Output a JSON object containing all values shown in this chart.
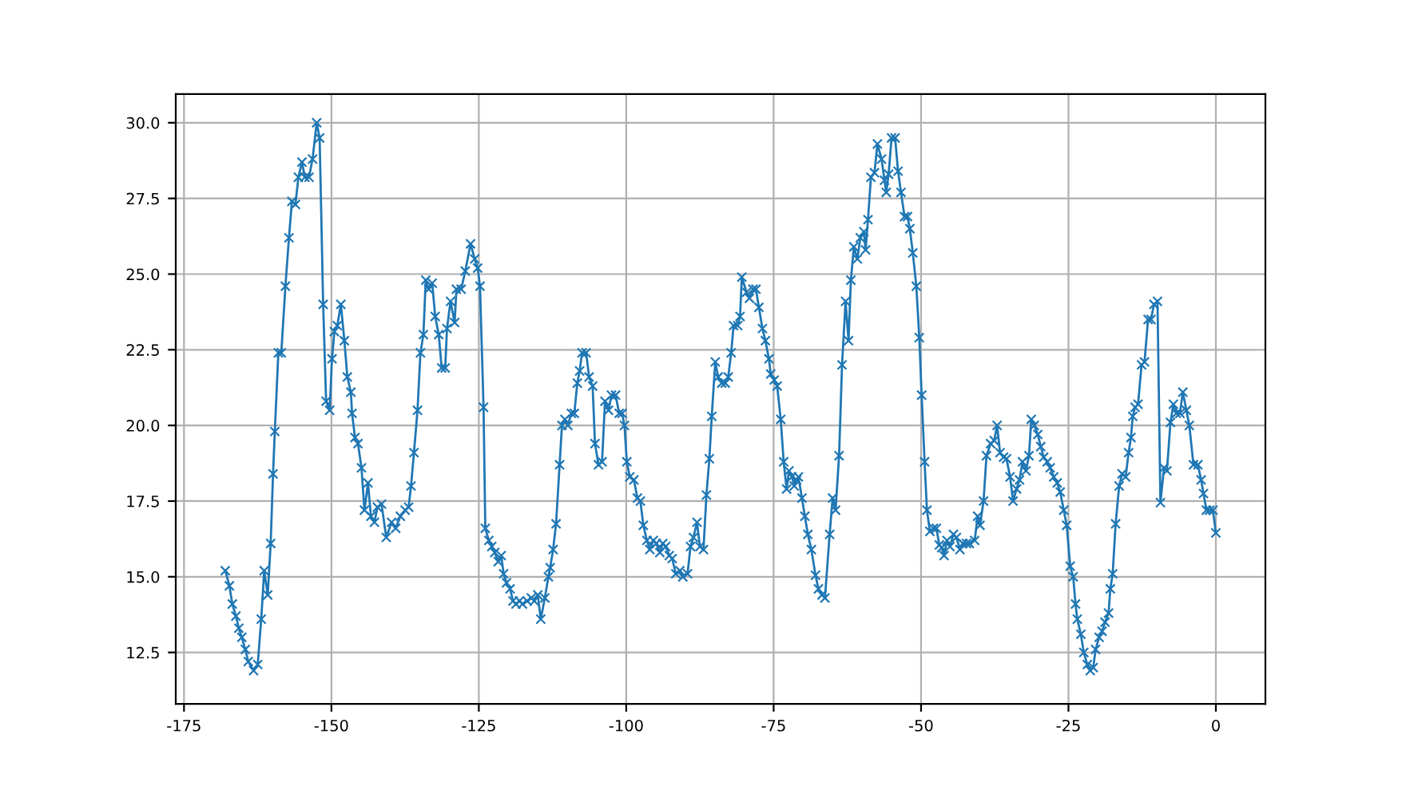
{
  "chart_data": {
    "type": "line",
    "marker": "cross",
    "line_style": "solid",
    "grid": true,
    "xlim": [
      -176.4,
      8.4
    ],
    "ylim": [
      10.8,
      30.95
    ],
    "xticks": [
      -175,
      -150,
      -125,
      -100,
      -75,
      -50,
      -25,
      0
    ],
    "yticks": [
      12.5,
      {
        "value": 15,
        "label": "15.0"
      },
      17.5,
      {
        "value": 20,
        "label": "20.0"
      },
      22.5,
      {
        "value": 25,
        "label": "25.0"
      },
      27.5,
      {
        "value": 30,
        "label": "30.0"
      }
    ],
    "series": [
      {
        "color": "#1f77b4",
        "x": [
          -168.0,
          -167.3,
          -166.8,
          -166.2,
          -165.7,
          -165.2,
          -164.6,
          -164.1,
          -163.2,
          -162.5,
          -161.9,
          -161.4,
          -160.8,
          -160.3,
          -159.9,
          -159.6,
          -159.0,
          -158.5,
          -157.8,
          -157.2,
          -156.7,
          -156.1,
          -155.6,
          -155.0,
          -154.5,
          -153.8,
          -153.2,
          -152.5,
          -152.0,
          -151.4,
          -150.9,
          -150.3,
          -149.9,
          -149.5,
          -149.0,
          -148.4,
          -147.8,
          -147.3,
          -146.7,
          -146.5,
          -146.0,
          -145.5,
          -144.9,
          -144.4,
          -143.8,
          -143.3,
          -142.7,
          -142.2,
          -141.5,
          -140.7,
          -139.8,
          -139.1,
          -138.3,
          -137.5,
          -136.9,
          -136.5,
          -136.0,
          -135.4,
          -134.9,
          -134.4,
          -134.0,
          -133.5,
          -132.9,
          -132.4,
          -131.8,
          -131.3,
          -130.7,
          -130.4,
          -129.8,
          -129.1,
          -128.8,
          -128.0,
          -127.3,
          -126.4,
          -125.7,
          -125.2,
          -124.8,
          -124.2,
          -123.9,
          -123.3,
          -122.8,
          -122.3,
          -121.7,
          -121.2,
          -120.8,
          -120.3,
          -119.7,
          -119.2,
          -118.7,
          -118.1,
          -117.6,
          -116.8,
          -116.1,
          -115.6,
          -115.0,
          -114.5,
          -113.8,
          -113.2,
          -112.9,
          -112.4,
          -111.9,
          -111.3,
          -110.9,
          -110.4,
          -109.9,
          -109.3,
          -108.8,
          -108.3,
          -107.9,
          -107.5,
          -106.8,
          -106.3,
          -105.7,
          -105.3,
          -104.7,
          -104.1,
          -103.6,
          -103.0,
          -102.5,
          -101.8,
          -101.2,
          -100.7,
          -100.3,
          -99.9,
          -99.4,
          -98.7,
          -98.1,
          -97.6,
          -97.1,
          -96.5,
          -96.0,
          -95.4,
          -94.9,
          -94.3,
          -93.8,
          -93.3,
          -92.7,
          -92.2,
          -91.6,
          -90.9,
          -90.4,
          -89.6,
          -89.1,
          -88.6,
          -88.0,
          -87.5,
          -86.9,
          -86.4,
          -85.9,
          -85.5,
          -84.9,
          -84.4,
          -83.8,
          -83.2,
          -82.7,
          -82.2,
          -81.8,
          -81.1,
          -80.7,
          -80.4,
          -79.6,
          -79.1,
          -78.5,
          -78.0,
          -77.5,
          -76.9,
          -76.4,
          -75.8,
          -75.5,
          -74.9,
          -74.4,
          -73.8,
          -73.3,
          -72.8,
          -72.4,
          -71.9,
          -71.5,
          -71.1,
          -70.8,
          -70.2,
          -69.7,
          -69.2,
          -68.6,
          -67.9,
          -67.4,
          -66.8,
          -66.3,
          -65.5,
          -65.0,
          -64.5,
          -63.9,
          -63.4,
          -62.8,
          -62.3,
          -61.9,
          -61.4,
          -60.8,
          -60.3,
          -59.7,
          -59.4,
          -59.0,
          -58.5,
          -57.9,
          -57.4,
          -56.7,
          -56.2,
          -55.9,
          -55.5,
          -55.0,
          -54.4,
          -53.9,
          -53.4,
          -52.8,
          -52.3,
          -51.9,
          -51.4,
          -50.8,
          -50.3,
          -49.9,
          -49.4,
          -49.0,
          -48.5,
          -47.9,
          -47.4,
          -46.9,
          -46.5,
          -46.1,
          -45.6,
          -45.1,
          -44.5,
          -44.0,
          -43.4,
          -42.9,
          -42.3,
          -41.8,
          -40.9,
          -40.4,
          -40.0,
          -39.4,
          -38.9,
          -38.2,
          -37.6,
          -37.1,
          -36.6,
          -36.0,
          -35.5,
          -34.9,
          -34.4,
          -33.8,
          -33.3,
          -32.8,
          -32.2,
          -31.7,
          -31.3,
          -30.8,
          -30.2,
          -29.7,
          -29.2,
          -28.6,
          -28.1,
          -27.5,
          -26.9,
          -26.4,
          -25.8,
          -25.3,
          -24.7,
          -24.2,
          -23.8,
          -23.5,
          -22.9,
          -22.4,
          -21.8,
          -21.3,
          -20.8,
          -20.4,
          -19.8,
          -19.3,
          -18.8,
          -18.2,
          -17.9,
          -17.5,
          -17.0,
          -16.4,
          -15.9,
          -15.3,
          -14.8,
          -14.4,
          -14.1,
          -13.7,
          -13.2,
          -12.6,
          -12.1,
          -11.5,
          -11.0,
          -10.5,
          -9.9,
          -9.4,
          -8.8,
          -8.3,
          -7.7,
          -7.2,
          -6.7,
          -6.1,
          -5.6,
          -5.0,
          -4.5,
          -3.8,
          -3.05,
          -2.5,
          -2.1,
          -1.6,
          -1.05,
          -0.5,
          0.0
        ],
        "values": [
          15.2,
          14.7,
          14.1,
          13.7,
          13.3,
          13.0,
          12.6,
          12.2,
          11.9,
          12.1,
          13.6,
          15.2,
          14.4,
          16.1,
          18.4,
          19.8,
          22.4,
          22.4,
          24.6,
          26.2,
          27.4,
          27.3,
          28.2,
          28.7,
          28.2,
          28.2,
          28.8,
          30.0,
          29.5,
          24.0,
          20.8,
          20.5,
          22.2,
          23.1,
          23.3,
          24.0,
          22.8,
          21.6,
          21.1,
          20.4,
          19.6,
          19.4,
          18.6,
          17.2,
          18.1,
          17.0,
          16.8,
          17.3,
          17.4,
          16.3,
          16.8,
          16.6,
          17.0,
          17.2,
          17.3,
          18.0,
          19.1,
          20.5,
          22.4,
          23.0,
          24.8,
          24.5,
          24.7,
          23.6,
          23.0,
          21.9,
          21.9,
          23.2,
          24.1,
          23.4,
          24.5,
          24.5,
          25.1,
          26.0,
          25.5,
          25.2,
          24.6,
          20.6,
          16.6,
          16.2,
          16.0,
          15.8,
          15.5,
          15.7,
          15.1,
          14.8,
          14.6,
          14.2,
          14.1,
          14.2,
          14.1,
          14.2,
          14.3,
          14.2,
          14.4,
          13.6,
          14.3,
          15.0,
          15.3,
          15.9,
          16.75,
          18.7,
          20.0,
          20.2,
          20.0,
          20.4,
          20.4,
          21.4,
          21.8,
          22.4,
          22.4,
          21.6,
          21.3,
          19.4,
          18.7,
          18.8,
          20.8,
          20.5,
          21.0,
          21.0,
          20.4,
          20.4,
          20.0,
          18.8,
          18.3,
          18.2,
          17.6,
          17.5,
          16.7,
          16.2,
          15.9,
          16.2,
          16.1,
          15.8,
          16.1,
          16.0,
          15.7,
          15.6,
          15.1,
          15.2,
          15.0,
          15.1,
          16.0,
          16.3,
          16.8,
          16.0,
          15.9,
          17.7,
          18.9,
          20.3,
          22.1,
          21.6,
          21.4,
          21.4,
          21.6,
          22.4,
          23.3,
          23.3,
          23.6,
          24.9,
          24.4,
          24.2,
          24.5,
          24.5,
          23.9,
          23.2,
          22.8,
          22.2,
          21.7,
          21.5,
          21.3,
          20.2,
          18.8,
          17.9,
          18.5,
          18.3,
          18.0,
          18.2,
          18.3,
          17.6,
          17.0,
          16.4,
          15.9,
          15.05,
          14.6,
          14.4,
          14.3,
          16.4,
          17.6,
          17.2,
          19.0,
          22.0,
          24.1,
          22.8,
          24.8,
          25.9,
          25.5,
          26.2,
          26.4,
          25.8,
          26.8,
          28.2,
          28.35,
          29.3,
          28.8,
          28.1,
          27.7,
          28.3,
          29.5,
          29.5,
          28.4,
          27.7,
          26.9,
          26.9,
          26.5,
          25.7,
          24.6,
          22.9,
          21.0,
          18.8,
          17.2,
          16.5,
          16.6,
          16.6,
          16.05,
          15.96,
          15.7,
          16.2,
          16.0,
          16.4,
          16.3,
          15.9,
          16.1,
          16.1,
          16.1,
          16.2,
          17.0,
          16.7,
          17.5,
          19.0,
          19.4,
          19.5,
          20.0,
          19.1,
          18.95,
          18.9,
          18.3,
          17.5,
          17.9,
          18.2,
          18.8,
          18.5,
          19.0,
          20.2,
          20.0,
          19.7,
          19.3,
          18.95,
          18.8,
          18.6,
          18.3,
          18.1,
          17.8,
          17.2,
          16.7,
          15.35,
          15.0,
          14.1,
          13.6,
          13.1,
          12.5,
          12.1,
          11.9,
          12.0,
          12.6,
          13.0,
          13.2,
          13.5,
          13.8,
          14.6,
          15.1,
          16.75,
          18.0,
          18.4,
          18.3,
          19.1,
          19.6,
          20.3,
          20.6,
          20.7,
          22.0,
          22.1,
          23.5,
          23.5,
          24.0,
          24.1,
          17.45,
          18.6,
          18.5,
          20.1,
          20.7,
          20.4,
          20.4,
          21.1,
          20.5,
          20.0,
          18.7,
          18.7,
          18.2,
          17.75,
          17.2,
          17.2,
          17.2,
          16.45
        ]
      }
    ]
  }
}
